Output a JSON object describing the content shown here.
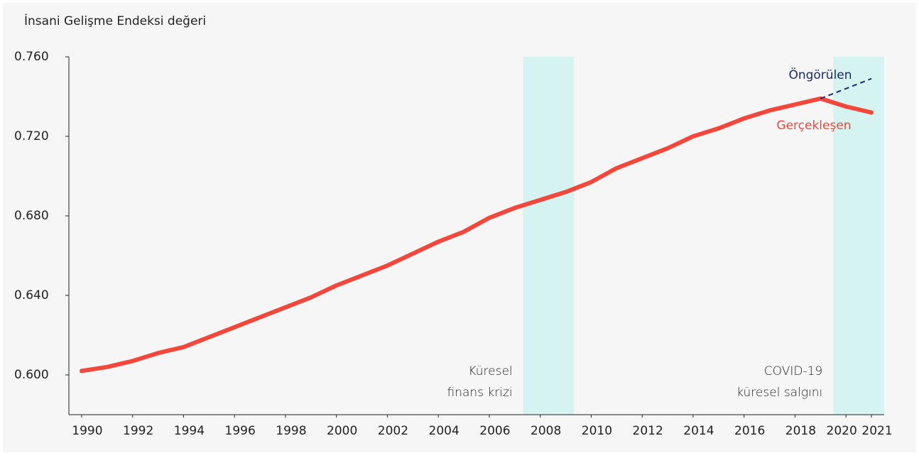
{
  "chart_data": {
    "type": "line",
    "y_axis_label": "İnsani Gelişme Endeksi değeri",
    "x": [
      1990,
      1991,
      1992,
      1993,
      1994,
      1995,
      1996,
      1997,
      1998,
      1999,
      2000,
      2001,
      2002,
      2003,
      2004,
      2005,
      2006,
      2007,
      2008,
      2009,
      2010,
      2011,
      2012,
      2013,
      2014,
      2015,
      2016,
      2017,
      2018,
      2019,
      2020,
      2021
    ],
    "series": [
      {
        "name": "Gerçekleşen",
        "color": "#f4473b",
        "dashed": false,
        "values": [
          0.602,
          0.604,
          0.607,
          0.611,
          0.614,
          0.619,
          0.624,
          0.629,
          0.634,
          0.639,
          0.645,
          0.65,
          0.655,
          0.661,
          0.667,
          0.672,
          0.679,
          0.684,
          0.688,
          0.692,
          0.697,
          0.704,
          0.709,
          0.714,
          0.72,
          0.724,
          0.729,
          0.733,
          0.736,
          0.739,
          0.735,
          0.732
        ]
      },
      {
        "name": "Öngörülen",
        "color": "#1b2a6b",
        "dashed": true,
        "values": [
          null,
          null,
          null,
          null,
          null,
          null,
          null,
          null,
          null,
          null,
          null,
          null,
          null,
          null,
          null,
          null,
          null,
          null,
          null,
          null,
          null,
          null,
          null,
          null,
          null,
          null,
          null,
          null,
          null,
          0.739,
          0.744,
          0.749
        ]
      }
    ],
    "shaded_periods": [
      {
        "label": [
          "Küresel",
          "finans krizi"
        ],
        "start": 2007.33,
        "end": 2009.33,
        "color": "#d5f4f1"
      },
      {
        "label": [
          "COVID-19",
          "küresel salgını"
        ],
        "start": 2019.5,
        "end": 2021.5,
        "color": "#d5f4f1"
      }
    ],
    "xlim": [
      1989.5,
      2021.5
    ],
    "xticks": [
      1990,
      1992,
      1994,
      1996,
      1998,
      2000,
      2002,
      2004,
      2006,
      2008,
      2010,
      2012,
      2014,
      2016,
      2018,
      2020,
      2021
    ],
    "ylim": [
      0.58,
      0.76
    ],
    "yticks": [
      {
        "value": 0.6,
        "label": "0.600"
      },
      {
        "value": 0.64,
        "label": "0.640"
      },
      {
        "value": 0.68,
        "label": "0.680"
      },
      {
        "value": 0.72,
        "label": "0.720"
      },
      {
        "value": 0.76,
        "label": "0.760"
      }
    ],
    "grid": false
  }
}
